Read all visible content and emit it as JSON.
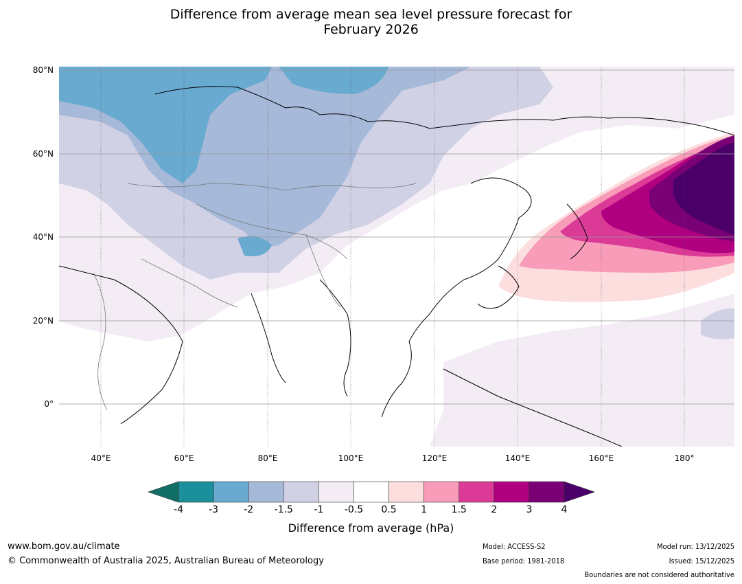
{
  "title_line1": "Difference from average mean sea level pressure forecast for",
  "title_line2": "February 2026",
  "map": {
    "lat_labels": [
      "80°N",
      "60°N",
      "40°N",
      "20°N",
      "0°"
    ],
    "lon_labels": [
      "40°E",
      "60°E",
      "80°E",
      "100°E",
      "120°E",
      "140°E",
      "160°E",
      "180°"
    ]
  },
  "colorbar": {
    "label": "Difference from average (hPa)",
    "ticks": [
      "-4",
      "-3",
      "-2",
      "-1.5",
      "-1",
      "-0.5",
      "0.5",
      "1",
      "1.5",
      "2",
      "3",
      "4"
    ],
    "colors": [
      "#0f6f66",
      "#1b8f9a",
      "#68aad0",
      "#a6b9d9",
      "#d1d1e6",
      "#f3ecf5",
      "#ffffff",
      "#fddede",
      "#f89cb9",
      "#dc3a97",
      "#b00080",
      "#7a0076",
      "#4a0068"
    ]
  },
  "footer": {
    "website": "www.bom.gov.au/climate",
    "copyright": "© Commonwealth of Australia 2025, Australian Bureau of Meteorology",
    "model": "Model: ACCESS-S2",
    "base_period": "Base period: 1981-2018",
    "model_run": "Model run: 13/12/2025",
    "issued": "Issued: 15/12/2025",
    "boundaries": "Boundaries are not considered authoritative"
  }
}
